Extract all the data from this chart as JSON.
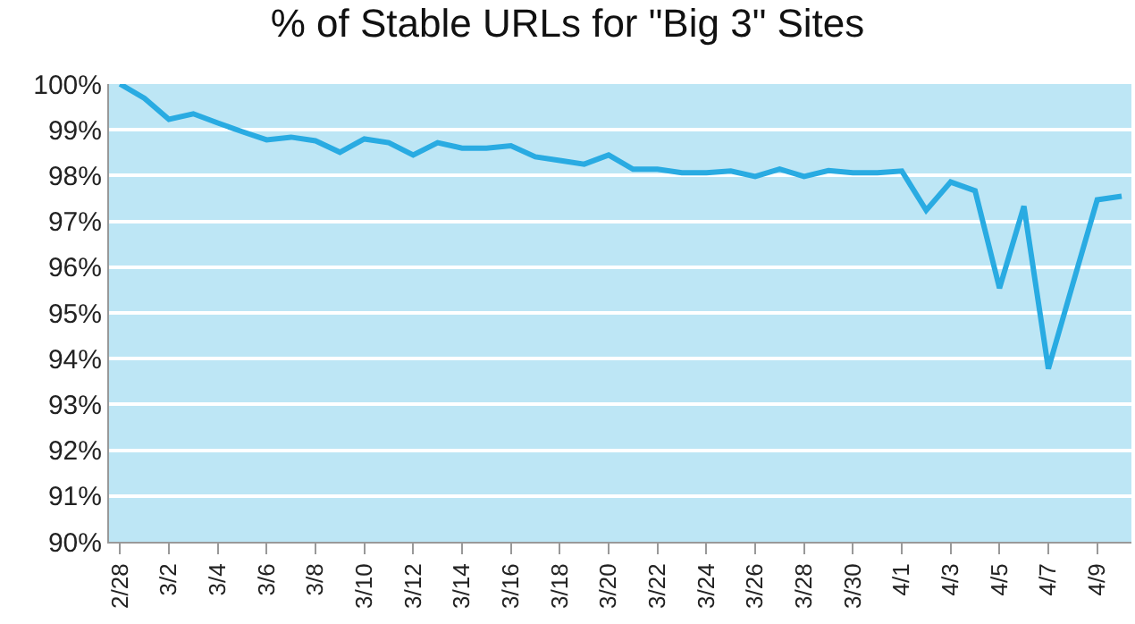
{
  "chart_data": {
    "type": "line",
    "title": "% of Stable URLs for \"Big 3\" Sites",
    "categories": [
      "2/28",
      null,
      "3/2",
      null,
      "3/4",
      null,
      "3/6",
      null,
      "3/8",
      null,
      "3/10",
      null,
      "3/12",
      null,
      "3/14",
      null,
      "3/16",
      null,
      "3/18",
      null,
      "3/20",
      null,
      "3/22",
      null,
      "3/24",
      null,
      "3/26",
      null,
      "3/28",
      null,
      "3/30",
      null,
      "4/1",
      null,
      "4/3",
      null,
      "4/5",
      null,
      "4/7",
      null,
      "4/9",
      null
    ],
    "series": [
      {
        "color": "#29abe2",
        "values": [
          100.0,
          99.69,
          99.23,
          99.35,
          99.15,
          98.96,
          98.78,
          98.84,
          98.76,
          98.51,
          98.8,
          98.72,
          98.45,
          98.72,
          98.6,
          98.6,
          98.65,
          98.41,
          98.33,
          98.25,
          98.45,
          98.14,
          98.14,
          98.06,
          98.06,
          98.1,
          97.98,
          98.14,
          97.98,
          98.11,
          98.06,
          98.06,
          98.1,
          97.24,
          97.86,
          97.67,
          95.54,
          97.33,
          93.78,
          95.63,
          97.47,
          97.55
        ]
      }
    ],
    "ylim": [
      90,
      100
    ],
    "yticks": [
      {
        "value": 90,
        "label": "90%"
      },
      {
        "value": 91,
        "label": "91%"
      },
      {
        "value": 92,
        "label": "92%"
      },
      {
        "value": 93,
        "label": "93%"
      },
      {
        "value": 94,
        "label": "94%"
      },
      {
        "value": 95,
        "label": "95%"
      },
      {
        "value": 96,
        "label": "96%"
      },
      {
        "value": 97,
        "label": "97%"
      },
      {
        "value": 98,
        "label": "98%"
      },
      {
        "value": 99,
        "label": "99%"
      },
      {
        "value": 100,
        "label": "100%"
      }
    ],
    "grid": "y",
    "marker": "none",
    "line_style": "solid"
  }
}
